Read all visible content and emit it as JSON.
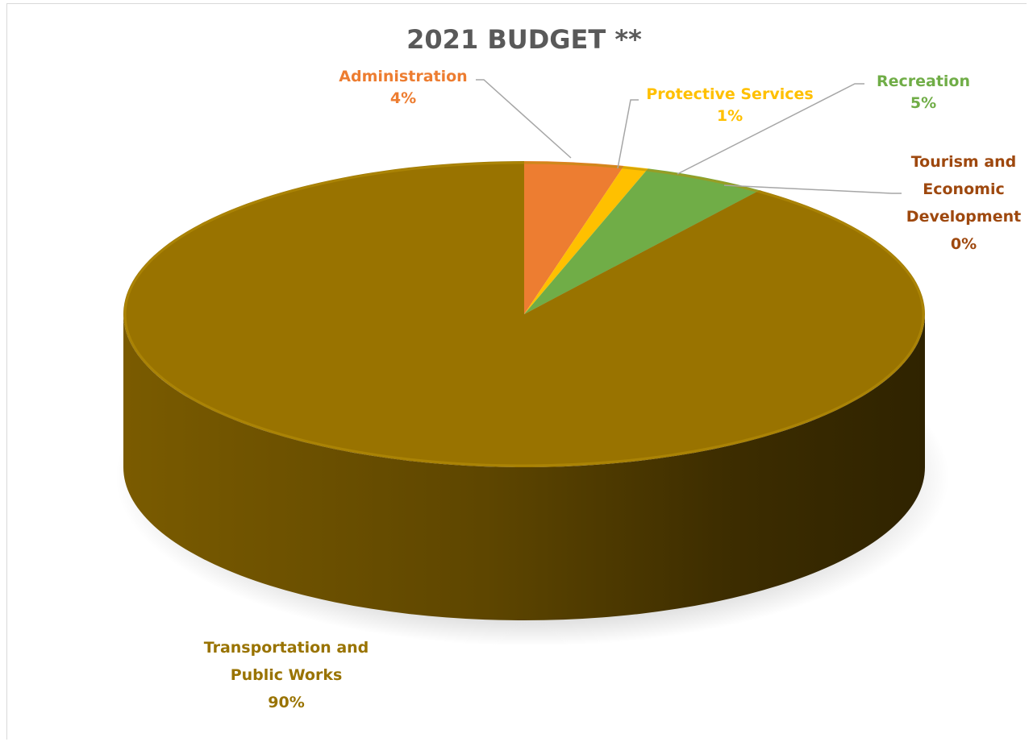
{
  "chart_data": {
    "type": "pie",
    "title": "2021 BUDGET **",
    "slices": [
      {
        "label": "Administration",
        "value": 4,
        "value_label": "4%",
        "color": "#ED7D31"
      },
      {
        "label": "Protective Services",
        "value": 1,
        "value_label": "1%",
        "color": "#FFC000"
      },
      {
        "label": "Recreation",
        "value": 5,
        "value_label": "5%",
        "color": "#70AD47"
      },
      {
        "label": "Tourism and Economic Development",
        "value": 0,
        "value_label": "0%",
        "color": "#9E480E"
      },
      {
        "label": "Transportation and Public Works",
        "value": 90,
        "value_label": "90%",
        "color": "#997300"
      }
    ],
    "legend": "none",
    "style": "3d-pie"
  },
  "labels": {
    "administration": {
      "name": "Administration",
      "pct": "4%"
    },
    "protective": {
      "name": "Protective Services",
      "pct": "1%"
    },
    "recreation": {
      "name": "Recreation",
      "pct": "5%"
    },
    "tourism": {
      "line1": "Tourism and",
      "line2": "Economic",
      "line3": "Development",
      "pct": "0%"
    },
    "transport": {
      "line1": "Transportation and",
      "line2": "Public Works",
      "pct": "90%"
    }
  }
}
